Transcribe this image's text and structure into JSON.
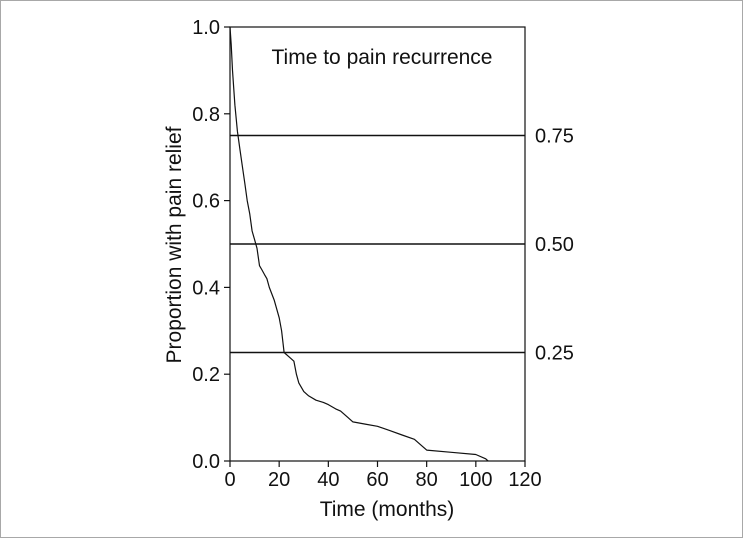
{
  "chart_data": {
    "type": "line",
    "title": "Time to pain recurrence",
    "xlabel": "Time (months)",
    "ylabel": "Proportion with pain relief",
    "xlim": [
      0,
      120
    ],
    "ylim": [
      0,
      1.0
    ],
    "xticks": [
      "0",
      "20",
      "40",
      "60",
      "80",
      "100",
      "120"
    ],
    "yticks": [
      "0.0",
      "0.2",
      "0.4",
      "0.6",
      "0.8",
      "1.0"
    ],
    "grid": false,
    "legend": "none",
    "reference_lines": [
      {
        "y": 0.75,
        "label": "0.75"
      },
      {
        "y": 0.5,
        "label": "0.50"
      },
      {
        "y": 0.25,
        "label": "0.25"
      }
    ],
    "series": [
      {
        "x": [
          0,
          0.5,
          1,
          1.5,
          2,
          3,
          4,
          5,
          6,
          7,
          8,
          9,
          10,
          11,
          12,
          13,
          14,
          15,
          16,
          18,
          20,
          21,
          22,
          24,
          26,
          27,
          28,
          30,
          32,
          35,
          38,
          40,
          43,
          45,
          48,
          50,
          55,
          60,
          65,
          70,
          75,
          78,
          80,
          90,
          100,
          104,
          105
        ],
        "y": [
          1.0,
          0.96,
          0.9,
          0.86,
          0.82,
          0.76,
          0.72,
          0.68,
          0.64,
          0.6,
          0.57,
          0.53,
          0.51,
          0.49,
          0.45,
          0.44,
          0.43,
          0.42,
          0.4,
          0.37,
          0.33,
          0.3,
          0.25,
          0.24,
          0.23,
          0.2,
          0.18,
          0.16,
          0.15,
          0.14,
          0.135,
          0.13,
          0.12,
          0.115,
          0.1,
          0.09,
          0.085,
          0.08,
          0.07,
          0.06,
          0.05,
          0.035,
          0.025,
          0.02,
          0.015,
          0.005,
          0.0
        ]
      }
    ],
    "colors": {
      "line": "#111111",
      "axis": "#111111"
    }
  }
}
